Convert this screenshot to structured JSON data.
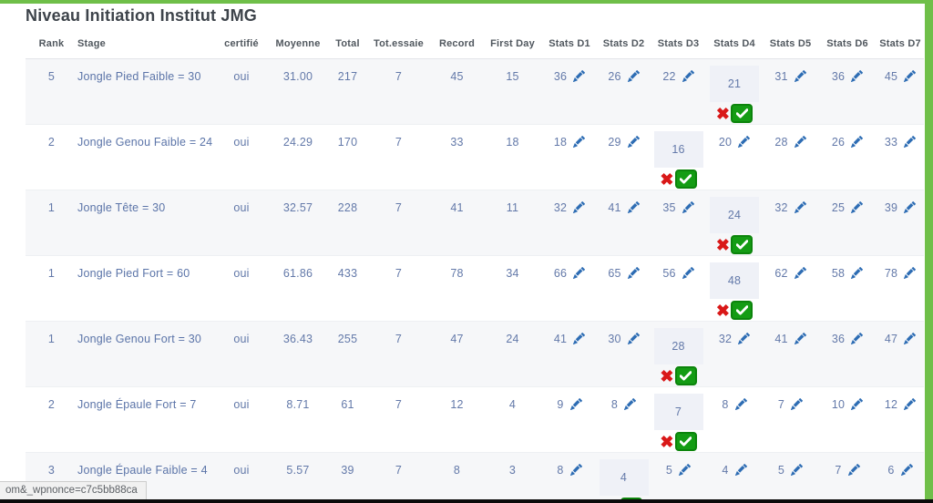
{
  "page": {
    "title": "Niveau Initiation Institut JMG",
    "status_bar": "om&_wpnonce=c7c5bb88ca"
  },
  "theme": {
    "accent_green": "#6fbf49",
    "row_stripe": "#f6f7f9",
    "cell_text_blue": "#6379a9",
    "edit_icon_blue": "#2e6db4",
    "cancel_red": "#d91818",
    "confirm_green": "#149c14"
  },
  "icons": {
    "edit": "pencil",
    "cancel_glyph": "✖",
    "confirm": "check"
  },
  "table": {
    "columns": [
      "Rank",
      "Stage",
      "certifié",
      "Moyenne",
      "Total",
      "Tot.essaie",
      "Record",
      "First Day",
      "Stats D1",
      "Stats D2",
      "Stats D3",
      "Stats D4",
      "Stats D5",
      "Stats D6",
      "Stats D7"
    ],
    "rows": [
      {
        "rank": "5",
        "stage": "Jongle Pied Faible = 30",
        "certifie": "oui",
        "moyenne": "31.00",
        "total": "217",
        "tot_essaie": "7",
        "record": "45",
        "first_day": "15",
        "stats": [
          {
            "value": "36",
            "state": "view"
          },
          {
            "value": "26",
            "state": "view"
          },
          {
            "value": "22",
            "state": "view"
          },
          {
            "value": "21",
            "state": "editing"
          },
          {
            "value": "31",
            "state": "view"
          },
          {
            "value": "36",
            "state": "view"
          },
          {
            "value": "45",
            "state": "view"
          }
        ]
      },
      {
        "rank": "2",
        "stage": "Jongle Genou Faible = 24",
        "certifie": "oui",
        "moyenne": "24.29",
        "total": "170",
        "tot_essaie": "7",
        "record": "33",
        "first_day": "18",
        "stats": [
          {
            "value": "18",
            "state": "view"
          },
          {
            "value": "29",
            "state": "view"
          },
          {
            "value": "16",
            "state": "editing"
          },
          {
            "value": "20",
            "state": "view"
          },
          {
            "value": "28",
            "state": "view"
          },
          {
            "value": "26",
            "state": "view"
          },
          {
            "value": "33",
            "state": "view"
          }
        ]
      },
      {
        "rank": "1",
        "stage": "Jongle Tête = 30",
        "certifie": "oui",
        "moyenne": "32.57",
        "total": "228",
        "tot_essaie": "7",
        "record": "41",
        "first_day": "11",
        "stats": [
          {
            "value": "32",
            "state": "view"
          },
          {
            "value": "41",
            "state": "view"
          },
          {
            "value": "35",
            "state": "view"
          },
          {
            "value": "24",
            "state": "editing"
          },
          {
            "value": "32",
            "state": "view"
          },
          {
            "value": "25",
            "state": "view"
          },
          {
            "value": "39",
            "state": "view"
          }
        ]
      },
      {
        "rank": "1",
        "stage": "Jongle Pied Fort = 60",
        "certifie": "oui",
        "moyenne": "61.86",
        "total": "433",
        "tot_essaie": "7",
        "record": "78",
        "first_day": "34",
        "stats": [
          {
            "value": "66",
            "state": "view"
          },
          {
            "value": "65",
            "state": "view"
          },
          {
            "value": "56",
            "state": "view"
          },
          {
            "value": "48",
            "state": "editing"
          },
          {
            "value": "62",
            "state": "view"
          },
          {
            "value": "58",
            "state": "view"
          },
          {
            "value": "78",
            "state": "view"
          }
        ]
      },
      {
        "rank": "1",
        "stage": "Jongle Genou Fort = 30",
        "certifie": "oui",
        "moyenne": "36.43",
        "total": "255",
        "tot_essaie": "7",
        "record": "47",
        "first_day": "24",
        "stats": [
          {
            "value": "41",
            "state": "view"
          },
          {
            "value": "30",
            "state": "view"
          },
          {
            "value": "28",
            "state": "editing"
          },
          {
            "value": "32",
            "state": "view"
          },
          {
            "value": "41",
            "state": "view"
          },
          {
            "value": "36",
            "state": "view"
          },
          {
            "value": "47",
            "state": "view"
          }
        ]
      },
      {
        "rank": "2",
        "stage": "Jongle Épaule Fort = 7",
        "certifie": "oui",
        "moyenne": "8.71",
        "total": "61",
        "tot_essaie": "7",
        "record": "12",
        "first_day": "4",
        "stats": [
          {
            "value": "9",
            "state": "view"
          },
          {
            "value": "8",
            "state": "view"
          },
          {
            "value": "7",
            "state": "editing"
          },
          {
            "value": "8",
            "state": "view"
          },
          {
            "value": "7",
            "state": "view"
          },
          {
            "value": "10",
            "state": "view"
          },
          {
            "value": "12",
            "state": "view"
          }
        ]
      },
      {
        "rank": "3",
        "stage": "Jongle Épaule Faible = 4",
        "certifie": "oui",
        "moyenne": "5.57",
        "total": "39",
        "tot_essaie": "7",
        "record": "8",
        "first_day": "3",
        "stats": [
          {
            "value": "8",
            "state": "view"
          },
          {
            "value": "4",
            "state": "editing"
          },
          {
            "value": "5",
            "state": "view"
          },
          {
            "value": "4",
            "state": "view"
          },
          {
            "value": "5",
            "state": "view"
          },
          {
            "value": "7",
            "state": "view"
          },
          {
            "value": "6",
            "state": "view"
          }
        ]
      }
    ]
  }
}
